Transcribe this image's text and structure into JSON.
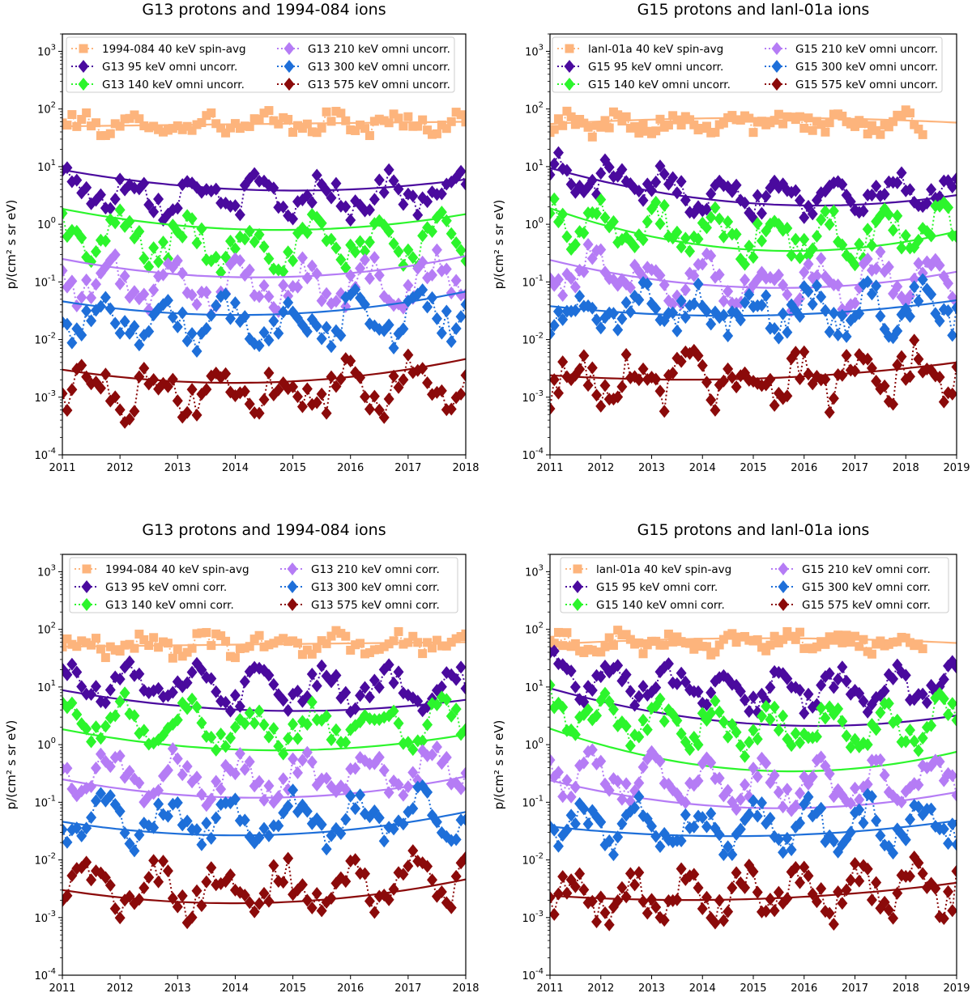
{
  "figure": {
    "ylabel": "p/(cm² s  sr  eV)"
  },
  "chart_data": [
    {
      "type": "scatter",
      "title": "G13 protons and 1994-084 ions",
      "xlabel": "",
      "ylabel": "p/(cm² s  sr  eV)",
      "xlim": [
        2011,
        2018
      ],
      "ylim": [
        0.0001,
        2000
      ],
      "yscale": "log",
      "xticks": [
        "2011",
        "2012",
        "2013",
        "2014",
        "2015",
        "2016",
        "2017",
        "2018"
      ],
      "yticks": [
        {
          "base": "10",
          "exp": "-4"
        },
        {
          "base": "10",
          "exp": "-3"
        },
        {
          "base": "10",
          "exp": "-2"
        },
        {
          "base": "10",
          "exp": "-1"
        },
        {
          "base": "10",
          "exp": "0"
        },
        {
          "base": "10",
          "exp": "1"
        },
        {
          "base": "10",
          "exp": "2"
        },
        {
          "base": "10",
          "exp": "3"
        }
      ],
      "legend_position": "top",
      "series": [
        {
          "name": "1994-084 40 keV spin-avg",
          "color": "#fdb47c",
          "marker": "square",
          "base": 55,
          "amp": 0.1,
          "noise": 0.14,
          "trend": [
            50,
            55,
            60
          ],
          "start": 2011,
          "end": 2018
        },
        {
          "name": "G13 95 keV omni uncorr.",
          "color": "#4a0a9e",
          "marker": "diamond",
          "base": 3.0,
          "amp": 0.25,
          "noise": 0.22,
          "trend": [
            8.8,
            3.9,
            6.0
          ],
          "start": 2011,
          "end": 2018
        },
        {
          "name": "G13 140 keV omni uncorr.",
          "color": "#2cf52c",
          "marker": "diamond",
          "base": 0.45,
          "amp": 0.3,
          "noise": 0.25,
          "trend": [
            1.85,
            0.8,
            1.5
          ],
          "start": 2011,
          "end": 2018
        },
        {
          "name": "G13 210 keV omni uncorr.",
          "color": "#b57cf5",
          "marker": "diamond",
          "base": 0.08,
          "amp": 0.3,
          "noise": 0.25,
          "trend": [
            0.25,
            0.12,
            0.28
          ],
          "start": 2011,
          "end": 2018
        },
        {
          "name": "G13 300 keV omni uncorr.",
          "color": "#1e6fd9",
          "marker": "diamond",
          "base": 0.02,
          "amp": 0.3,
          "noise": 0.28,
          "trend": [
            0.046,
            0.027,
            0.068
          ],
          "start": 2011,
          "end": 2018
        },
        {
          "name": "G13 575 keV omni uncorr.",
          "color": "#8b0a0a",
          "marker": "diamond",
          "base": 0.0013,
          "amp": 0.3,
          "noise": 0.3,
          "trend": [
            0.003,
            0.0018,
            0.0046
          ],
          "start": 2011,
          "end": 2018
        }
      ]
    },
    {
      "type": "scatter",
      "title": "G15 protons and lanl-01a ions",
      "xlabel": "",
      "ylabel": "p/(cm² s  sr  eV)",
      "xlim": [
        2011,
        2019
      ],
      "ylim": [
        0.0001,
        2000
      ],
      "yscale": "log",
      "xticks": [
        "2011",
        "2012",
        "2013",
        "2014",
        "2015",
        "2016",
        "2017",
        "2018",
        "2019"
      ],
      "yticks": [
        {
          "base": "10",
          "exp": "-4"
        },
        {
          "base": "10",
          "exp": "-3"
        },
        {
          "base": "10",
          "exp": "-2"
        },
        {
          "base": "10",
          "exp": "-1"
        },
        {
          "base": "10",
          "exp": "0"
        },
        {
          "base": "10",
          "exp": "1"
        },
        {
          "base": "10",
          "exp": "2"
        },
        {
          "base": "10",
          "exp": "3"
        }
      ],
      "legend_position": "top",
      "series": [
        {
          "name": "lanl-01a 40 keV spin-avg",
          "color": "#fdb47c",
          "marker": "square",
          "base": 60,
          "amp": 0.1,
          "noise": 0.14,
          "trend": [
            55,
            70,
            58
          ],
          "start": 2011,
          "end": 2018.3
        },
        {
          "name": "G15 95 keV omni uncorr.",
          "color": "#4a0a9e",
          "marker": "diamond",
          "base": 3.5,
          "amp": 0.25,
          "noise": 0.22,
          "trend": [
            9.5,
            2.3,
            3.2
          ],
          "start": 2011,
          "end": 2019
        },
        {
          "name": "G15 140 keV omni uncorr.",
          "color": "#2cf52c",
          "marker": "diamond",
          "base": 0.6,
          "amp": 0.3,
          "noise": 0.25,
          "trend": [
            1.9,
            0.36,
            0.75
          ],
          "start": 2011,
          "end": 2019
        },
        {
          "name": "G15 210 keV omni uncorr.",
          "color": "#b57cf5",
          "marker": "diamond",
          "base": 0.1,
          "amp": 0.3,
          "noise": 0.25,
          "trend": [
            0.24,
            0.08,
            0.15
          ],
          "start": 2011,
          "end": 2019
        },
        {
          "name": "G15 300 keV omni uncorr.",
          "color": "#1e6fd9",
          "marker": "diamond",
          "base": 0.03,
          "amp": 0.3,
          "noise": 0.28,
          "trend": [
            0.038,
            0.026,
            0.048
          ],
          "start": 2011,
          "end": 2019
        },
        {
          "name": "G15 575 keV omni uncorr.",
          "color": "#8b0a0a",
          "marker": "diamond",
          "base": 0.002,
          "amp": 0.3,
          "noise": 0.3,
          "trend": [
            0.0024,
            0.0021,
            0.004
          ],
          "start": 2011,
          "end": 2019
        }
      ]
    },
    {
      "type": "scatter",
      "title": "G13 protons and 1994-084 ions",
      "xlabel": "",
      "ylabel": "p/(cm² s  sr  eV)",
      "xlim": [
        2011,
        2018
      ],
      "ylim": [
        0.0001,
        2000
      ],
      "yscale": "log",
      "xticks": [
        "2011",
        "2012",
        "2013",
        "2014",
        "2015",
        "2016",
        "2017",
        "2018"
      ],
      "yticks": [
        {
          "base": "10",
          "exp": "-4"
        },
        {
          "base": "10",
          "exp": "-3"
        },
        {
          "base": "10",
          "exp": "-2"
        },
        {
          "base": "10",
          "exp": "-1"
        },
        {
          "base": "10",
          "exp": "0"
        },
        {
          "base": "10",
          "exp": "1"
        },
        {
          "base": "10",
          "exp": "2"
        },
        {
          "base": "10",
          "exp": "3"
        }
      ],
      "legend_position": "top",
      "series": [
        {
          "name": "1994-084 40 keV spin-avg",
          "color": "#fdb47c",
          "marker": "square",
          "base": 55,
          "amp": 0.1,
          "noise": 0.14,
          "trend": [
            50,
            55,
            60
          ],
          "start": 2011,
          "end": 2018
        },
        {
          "name": "G13 95 keV omni corr.",
          "color": "#4a0a9e",
          "marker": "diamond",
          "base": 9,
          "amp": 0.25,
          "noise": 0.2,
          "trend": [
            8.8,
            3.9,
            6.0
          ],
          "start": 2011,
          "end": 2018
        },
        {
          "name": "G13 140 keV omni corr.",
          "color": "#2cf52c",
          "marker": "diamond",
          "base": 2.0,
          "amp": 0.3,
          "noise": 0.22,
          "trend": [
            1.85,
            0.8,
            1.5
          ],
          "start": 2011,
          "end": 2018
        },
        {
          "name": "G13 210 keV omni corr.",
          "color": "#b57cf5",
          "marker": "diamond",
          "base": 0.25,
          "amp": 0.3,
          "noise": 0.22,
          "trend": [
            0.25,
            0.12,
            0.28
          ],
          "start": 2011,
          "end": 2018
        },
        {
          "name": "G13 300 keV omni corr.",
          "color": "#1e6fd9",
          "marker": "diamond",
          "base": 0.045,
          "amp": 0.3,
          "noise": 0.25,
          "trend": [
            0.046,
            0.027,
            0.068
          ],
          "start": 2011,
          "end": 2018
        },
        {
          "name": "G13 575 keV omni corr.",
          "color": "#8b0a0a",
          "marker": "diamond",
          "base": 0.003,
          "amp": 0.3,
          "noise": 0.28,
          "trend": [
            0.003,
            0.0018,
            0.0046
          ],
          "start": 2011,
          "end": 2018
        }
      ]
    },
    {
      "type": "scatter",
      "title": "G15 protons and lanl-01a ions",
      "xlabel": "",
      "ylabel": "p/(cm² s  sr  eV)",
      "xlim": [
        2011,
        2019
      ],
      "ylim": [
        0.0001,
        2000
      ],
      "yscale": "log",
      "xticks": [
        "2011",
        "2012",
        "2013",
        "2014",
        "2015",
        "2016",
        "2017",
        "2018",
        "2019"
      ],
      "yticks": [
        {
          "base": "10",
          "exp": "-4"
        },
        {
          "base": "10",
          "exp": "-3"
        },
        {
          "base": "10",
          "exp": "-2"
        },
        {
          "base": "10",
          "exp": "-1"
        },
        {
          "base": "10",
          "exp": "0"
        },
        {
          "base": "10",
          "exp": "1"
        },
        {
          "base": "10",
          "exp": "2"
        },
        {
          "base": "10",
          "exp": "3"
        }
      ],
      "legend_position": "top",
      "series": [
        {
          "name": "lanl-01a 40 keV spin-avg",
          "color": "#fdb47c",
          "marker": "square",
          "base": 60,
          "amp": 0.1,
          "noise": 0.14,
          "trend": [
            55,
            70,
            58
          ],
          "start": 2011,
          "end": 2018.3
        },
        {
          "name": "G15 95 keV omni corr.",
          "color": "#4a0a9e",
          "marker": "diamond",
          "base": 9,
          "amp": 0.25,
          "noise": 0.2,
          "trend": [
            9.5,
            2.3,
            3.2
          ],
          "start": 2011,
          "end": 2019
        },
        {
          "name": "G15 140 keV omni corr.",
          "color": "#2cf52c",
          "marker": "diamond",
          "base": 1.8,
          "amp": 0.3,
          "noise": 0.22,
          "trend": [
            1.9,
            0.36,
            0.75
          ],
          "start": 2011,
          "end": 2019
        },
        {
          "name": "G15 210 keV omni corr.",
          "color": "#b57cf5",
          "marker": "diamond",
          "base": 0.2,
          "amp": 0.3,
          "noise": 0.22,
          "trend": [
            0.24,
            0.08,
            0.15
          ],
          "start": 2011,
          "end": 2019
        },
        {
          "name": "G15 300 keV omni corr.",
          "color": "#1e6fd9",
          "marker": "diamond",
          "base": 0.035,
          "amp": 0.3,
          "noise": 0.25,
          "trend": [
            0.038,
            0.026,
            0.048
          ],
          "start": 2011,
          "end": 2019
        },
        {
          "name": "G15 575 keV omni corr.",
          "color": "#8b0a0a",
          "marker": "diamond",
          "base": 0.0025,
          "amp": 0.3,
          "noise": 0.28,
          "trend": [
            0.0024,
            0.0021,
            0.004
          ],
          "start": 2011,
          "end": 2019
        }
      ]
    }
  ]
}
